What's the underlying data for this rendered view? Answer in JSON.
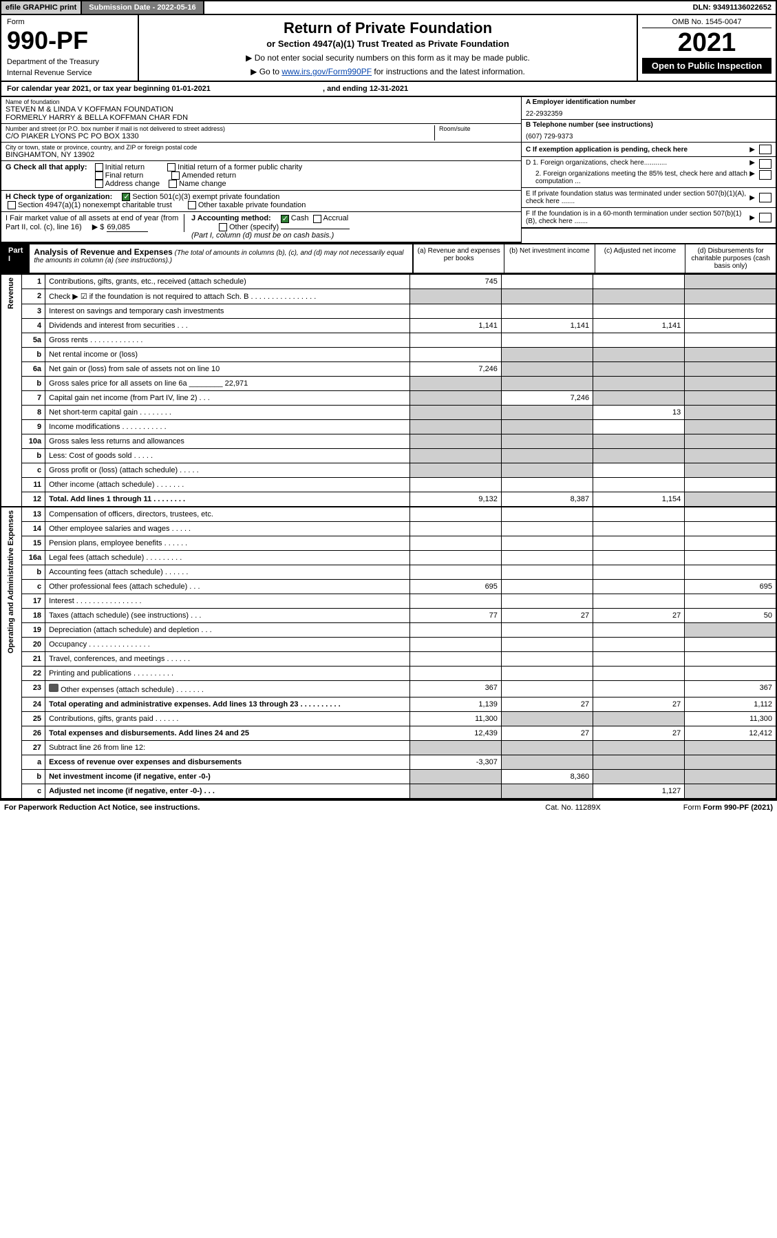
{
  "topbar": {
    "efile": "efile GRAPHIC print",
    "subdate": "Submission Date - 2022-05-16",
    "dln": "DLN: 93491136022652"
  },
  "header": {
    "form": "Form",
    "no": "990-PF",
    "dept": "Department of the Treasury",
    "irs": "Internal Revenue Service",
    "title1": "Return of Private Foundation",
    "title2": "or Section 4947(a)(1) Trust Treated as Private Foundation",
    "instr1": "▶ Do not enter social security numbers on this form as it may be made public.",
    "instr2": "▶ Go to ",
    "link": "www.irs.gov/Form990PF",
    "instr3": " for instructions and the latest information.",
    "omb": "OMB No. 1545-0047",
    "year": "2021",
    "open": "Open to Public Inspection"
  },
  "calyear": {
    "text": "For calendar year 2021, or tax year beginning 01-01-2021",
    "end": ", and ending 12-31-2021"
  },
  "info": {
    "name_lbl": "Name of foundation",
    "name1": "STEVEN M & LINDA V KOFFMAN FOUNDATION",
    "name2": "FORMERLY HARRY & BELLA KOFFMAN CHAR FDN",
    "addr_lbl": "Number and street (or P.O. box number if mail is not delivered to street address)",
    "room_lbl": "Room/suite",
    "addr": "C/O PIAKER LYONS PC PO BOX 1330",
    "city_lbl": "City or town, state or province, country, and ZIP or foreign postal code",
    "city": "BINGHAMTON, NY  13902",
    "ein_lbl": "A Employer identification number",
    "ein": "22-2932359",
    "tel_lbl": "B Telephone number (see instructions)",
    "tel": "(607) 729-9373",
    "c": "C If exemption application is pending, check here",
    "d1": "D 1. Foreign organizations, check here............",
    "d2": "2. Foreign organizations meeting the 85% test, check here and attach computation ...",
    "e": "E  If private foundation status was terminated under section 507(b)(1)(A), check here .......",
    "f": "F  If the foundation is in a 60-month termination under section 507(b)(1)(B), check here ......."
  },
  "g": {
    "lbl": "G Check all that apply:",
    "opts": [
      "Initial return",
      "Initial return of a former public charity",
      "Final return",
      "Amended return",
      "Address change",
      "Name change"
    ]
  },
  "h": {
    "lbl": "H Check type of organization:",
    "opt1": "Section 501(c)(3) exempt private foundation",
    "opt2": "Section 4947(a)(1) nonexempt charitable trust",
    "opt3": "Other taxable private foundation"
  },
  "i": {
    "lbl": "I Fair market value of all assets at end of year (from Part II, col. (c), line 16)",
    "val": "69,085"
  },
  "j": {
    "lbl": "J Accounting method:",
    "cash": "Cash",
    "accrual": "Accrual",
    "other": "Other (specify)",
    "note": "(Part I, column (d) must be on cash basis.)"
  },
  "part1": {
    "hdr": "Part I",
    "title": "Analysis of Revenue and Expenses",
    "sub": "(The total of amounts in columns (b), (c), and (d) may not necessarily equal the amounts in column (a) (see instructions).)",
    "cols": {
      "a": "(a)   Revenue and expenses per books",
      "b": "(b)   Net investment income",
      "c": "(c)   Adjusted net income",
      "d": "(d)  Disbursements for charitable purposes (cash basis only)"
    }
  },
  "side": {
    "rev": "Revenue",
    "exp": "Operating and Administrative Expenses"
  },
  "rows": [
    {
      "n": "1",
      "lbl": "Contributions, gifts, grants, etc., received (attach schedule)",
      "a": "745",
      "d_shade": true
    },
    {
      "n": "2",
      "lbl": "Check ▶ ☑ if the foundation is not required to attach Sch. B        .   .   .   .   .   .   .   .   .   .   .   .   .   .   .   .",
      "all_shade": true
    },
    {
      "n": "3",
      "lbl": "Interest on savings and temporary cash investments"
    },
    {
      "n": "4",
      "lbl": "Dividends and interest from securities       .     .     .",
      "a": "1,141",
      "b": "1,141",
      "c": "1,141"
    },
    {
      "n": "5a",
      "lbl": "Gross rents         .    .    .    .    .    .    .    .    .    .    .    .    ."
    },
    {
      "n": "b",
      "lbl": "Net rental income or (loss)",
      "bcd_shade": true
    },
    {
      "n": "6a",
      "lbl": "Net gain or (loss) from sale of assets not on line 10",
      "a": "7,246",
      "bcd_shade": true
    },
    {
      "n": "b",
      "lbl": "Gross sales price for all assets on line 6a ________ 22,971",
      "bcd_shade": true,
      "a_shade": true
    },
    {
      "n": "7",
      "lbl": "Capital gain net income (from Part IV, line 2)     .    .    .",
      "b": "7,246",
      "a_shade": true,
      "cd_shade": true
    },
    {
      "n": "8",
      "lbl": "Net short-term capital gain    .    .    .    .    .    .    .    .",
      "c": "13",
      "ab_shade": true,
      "d_shade": true
    },
    {
      "n": "9",
      "lbl": "Income modifications  .    .    .    .    .    .    .    .    .    .    .",
      "ab_shade": true,
      "d_shade": true
    },
    {
      "n": "10a",
      "lbl": "Gross sales less returns and allowances",
      "abcd_shade": true
    },
    {
      "n": "b",
      "lbl": "Less: Cost of goods sold      .    .    .    .    .",
      "abcd_shade": true
    },
    {
      "n": "c",
      "lbl": "Gross profit or (loss) (attach schedule)       .    .    .    .    .",
      "ab_shade": true,
      "d_shade": true
    },
    {
      "n": "11",
      "lbl": "Other income (attach schedule)     .    .    .    .    .    .    ."
    },
    {
      "n": "12",
      "lbl": "Total. Add lines 1 through 11    .    .    .    .    .    .    .    .",
      "bold": true,
      "a": "9,132",
      "b": "8,387",
      "c": "1,154",
      "d_shade": true
    }
  ],
  "rows2": [
    {
      "n": "13",
      "lbl": "Compensation of officers, directors, trustees, etc."
    },
    {
      "n": "14",
      "lbl": "Other employee salaries and wages     .    .    .    .    ."
    },
    {
      "n": "15",
      "lbl": "Pension plans, employee benefits   .    .    .    .    .   ."
    },
    {
      "n": "16a",
      "lbl": "Legal fees (attach schedule)  .    .    .    .    .    .    .    .    ."
    },
    {
      "n": "b",
      "lbl": "Accounting fees (attach schedule)  .    .    .    .    .    ."
    },
    {
      "n": "c",
      "lbl": "Other professional fees (attach schedule)      .    .    .",
      "a": "695",
      "d": "695"
    },
    {
      "n": "17",
      "lbl": "Interest  .    .    .    .    .    .    .    .    .    .    .    .    .    .    .    ."
    },
    {
      "n": "18",
      "lbl": "Taxes (attach schedule) (see instructions)      .    .    .",
      "a": "77",
      "b": "27",
      "c": "27",
      "d": "50"
    },
    {
      "n": "19",
      "lbl": "Depreciation (attach schedule) and depletion     .    .    .",
      "d_shade": true
    },
    {
      "n": "20",
      "lbl": "Occupancy  .    .    .    .    .    .    .    .    .    .    .    .    .    .    ."
    },
    {
      "n": "21",
      "lbl": "Travel, conferences, and meetings  .    .    .    .    .    ."
    },
    {
      "n": "22",
      "lbl": "Printing and publications  .    .    .    .    .    .    .    .    .    ."
    },
    {
      "n": "23",
      "lbl": "Other expenses (attach schedule)  .    .    .    .    .    .    .",
      "icon": true,
      "a": "367",
      "d": "367"
    },
    {
      "n": "24",
      "lbl": "Total operating and administrative expenses. Add lines 13 through 23    .    .    .    .    .    .    .    .    .    .",
      "bold": true,
      "a": "1,139",
      "b": "27",
      "c": "27",
      "d": "1,112"
    },
    {
      "n": "25",
      "lbl": "Contributions, gifts, grants paid      .    .    .    .    .    .",
      "a": "11,300",
      "bc_shade": true,
      "d": "11,300"
    },
    {
      "n": "26",
      "lbl": "Total expenses and disbursements. Add lines 24 and 25",
      "bold": true,
      "a": "12,439",
      "b": "27",
      "c": "27",
      "d": "12,412"
    },
    {
      "n": "27",
      "lbl": "Subtract line 26 from line 12:",
      "bcd_shade": true,
      "a_shade": true
    },
    {
      "n": "a",
      "lbl": "Excess of revenue over expenses and disbursements",
      "bold": true,
      "a": "-3,307",
      "bcd_shade": true
    },
    {
      "n": "b",
      "lbl": "Net investment income (if negative, enter -0-)",
      "bold": true,
      "b": "8,360",
      "a_shade": true,
      "cd_shade": true
    },
    {
      "n": "c",
      "lbl": "Adjusted net income (if negative, enter -0-)    .    .    .",
      "bold": true,
      "c": "1,127",
      "ab_shade": true,
      "d_shade": true
    }
  ],
  "footer": {
    "pra": "For Paperwork Reduction Act Notice, see instructions.",
    "cat": "Cat. No. 11289X",
    "form": "Form 990-PF (2021)"
  }
}
